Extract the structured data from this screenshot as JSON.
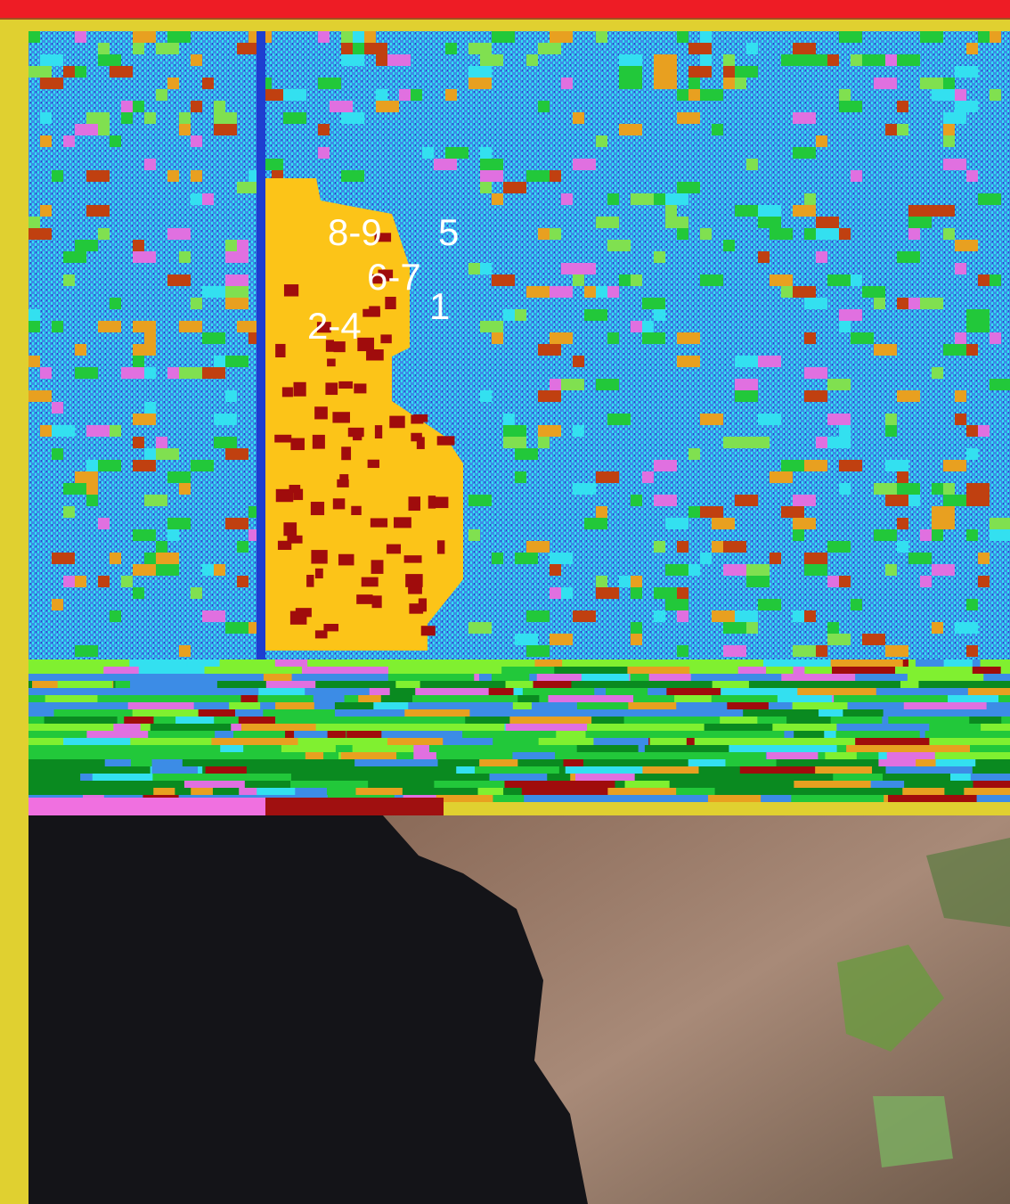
{
  "labels": [
    "8-9",
    "5",
    "6-7",
    "1",
    "2-4"
  ]
}
